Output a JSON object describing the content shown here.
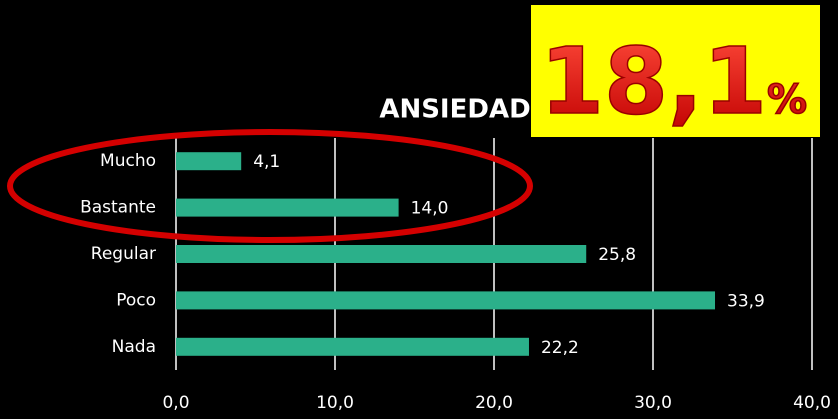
{
  "chart_data": {
    "type": "barh",
    "title": "ANSIEDAD",
    "categories": [
      "Mucho",
      "Bastante",
      "Regular",
      "Poco",
      "Nada"
    ],
    "values": [
      4.1,
      14.0,
      25.8,
      33.9,
      22.2
    ],
    "value_labels": [
      "4,1",
      "14,0",
      "25,8",
      "33,9",
      "22,2"
    ],
    "color": "#2bb08a",
    "xlim": [
      0,
      40
    ],
    "xticks": [
      {
        "value": 0,
        "label": "0,0"
      },
      {
        "value": 10,
        "label": "10,0"
      },
      {
        "value": 20,
        "label": "20,0"
      },
      {
        "value": 30,
        "label": "30,0"
      },
      {
        "value": 40,
        "label": "40,0"
      }
    ],
    "grid": true,
    "annotation": {
      "number": "18,1",
      "unit": "%"
    }
  }
}
